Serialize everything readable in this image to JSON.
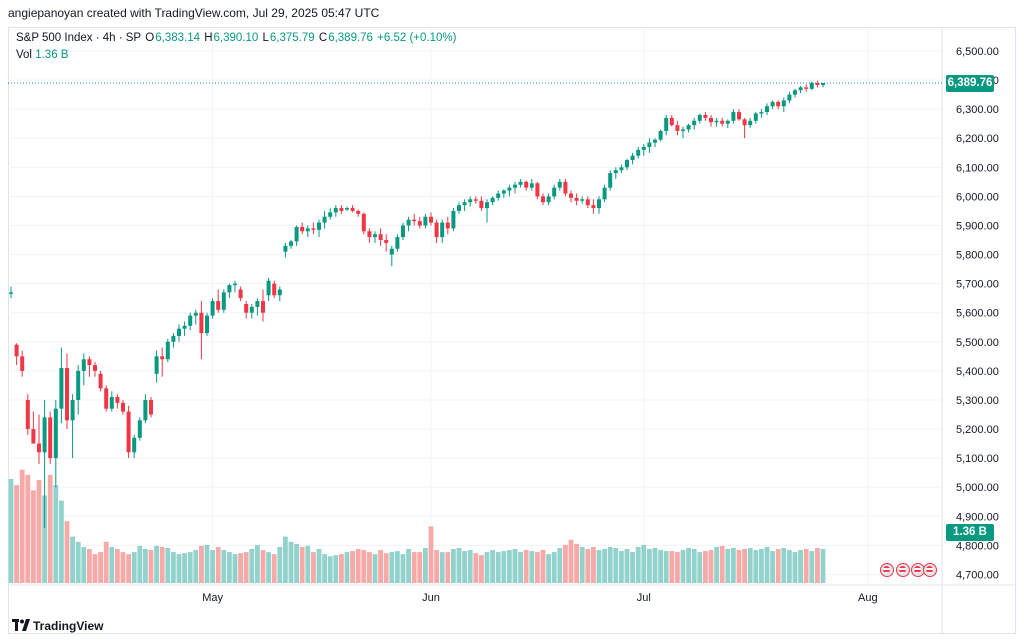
{
  "header": {
    "credit": "angiepanoyan created with TradingView.com, Jul 29, 2025 05:47 UTC"
  },
  "legend": {
    "symbol": "S&P 500 Index · 4h · SP",
    "o_label": "O",
    "o_value": "6,383.14",
    "h_label": "H",
    "h_value": "6,390.10",
    "l_label": "L",
    "l_value": "6,375.79",
    "c_label": "C",
    "c_value": "6,389.76",
    "change": "+6.52 (+0.10%)",
    "vol_label": "Vol",
    "vol_value": "1.36 B"
  },
  "price_tag": "6,389.76",
  "volume_tag": "1.36 B",
  "footer": {
    "brand": "TradingView"
  },
  "colors": {
    "up": "#089981",
    "down": "#f23645",
    "up_vol": "#92d2cc",
    "down_vol": "#f7a9a7",
    "grid": "#f0f3fa"
  },
  "chart_data": {
    "type": "candlestick",
    "title": "S&P 500 Index · 4h · SP",
    "ylim": [
      4650,
      6560
    ],
    "y_ticks": [
      "6,500.00",
      "6,400.00",
      "6,300.00",
      "6,200.00",
      "6,100.00",
      "6,000.00",
      "5,900.00",
      "5,800.00",
      "5,700.00",
      "5,600.00",
      "5,500.00",
      "5,400.00",
      "5,300.00",
      "5,200.00",
      "5,100.00",
      "5,000.00",
      "4,900.00",
      "4,800.00",
      "4,700.00"
    ],
    "x_ticks": [
      {
        "label": "May",
        "index": 36
      },
      {
        "label": "Jun",
        "index": 75
      },
      {
        "label": "Jul",
        "index": 113
      },
      {
        "label": "Aug",
        "index": 153
      }
    ],
    "candles": [
      [
        5665,
        5690,
        5650,
        5670
      ],
      [
        5490,
        5495,
        5420,
        5450
      ],
      [
        5450,
        5470,
        5380,
        5400
      ],
      [
        5300,
        5320,
        5180,
        5200
      ],
      [
        5200,
        5260,
        5150,
        5150
      ],
      [
        5150,
        5250,
        5080,
        5120
      ],
      [
        5120,
        5300,
        4860,
        5240
      ],
      [
        5240,
        5260,
        5080,
        5100
      ],
      [
        5100,
        5300,
        5000,
        5270
      ],
      [
        5270,
        5480,
        5220,
        5410
      ],
      [
        5410,
        5460,
        5200,
        5230
      ],
      [
        5230,
        5320,
        5100,
        5300
      ],
      [
        5300,
        5420,
        5250,
        5400
      ],
      [
        5400,
        5460,
        5350,
        5440
      ],
      [
        5440,
        5450,
        5380,
        5420
      ],
      [
        5420,
        5430,
        5380,
        5400
      ],
      [
        5390,
        5400,
        5330,
        5340
      ],
      [
        5340,
        5350,
        5260,
        5270
      ],
      [
        5270,
        5330,
        5260,
        5310
      ],
      [
        5310,
        5320,
        5270,
        5290
      ],
      [
        5290,
        5300,
        5250,
        5260
      ],
      [
        5260,
        5280,
        5100,
        5120
      ],
      [
        5120,
        5180,
        5100,
        5170
      ],
      [
        5170,
        5240,
        5160,
        5230
      ],
      [
        5230,
        5320,
        5220,
        5300
      ],
      [
        5300,
        5310,
        5240,
        5250
      ],
      [
        5390,
        5470,
        5360,
        5450
      ],
      [
        5450,
        5480,
        5380,
        5440
      ],
      [
        5440,
        5510,
        5430,
        5500
      ],
      [
        5500,
        5530,
        5480,
        5520
      ],
      [
        5520,
        5560,
        5500,
        5545
      ],
      [
        5545,
        5570,
        5520,
        5555
      ],
      [
        5555,
        5600,
        5540,
        5590
      ],
      [
        5590,
        5610,
        5560,
        5600
      ],
      [
        5600,
        5640,
        5440,
        5530
      ],
      [
        5530,
        5600,
        5520,
        5590
      ],
      [
        5590,
        5650,
        5580,
        5640
      ],
      [
        5640,
        5680,
        5600,
        5610
      ],
      [
        5610,
        5680,
        5600,
        5670
      ],
      [
        5670,
        5700,
        5650,
        5695
      ],
      [
        5695,
        5710,
        5670,
        5700
      ],
      [
        5680,
        5690,
        5640,
        5650
      ],
      [
        5630,
        5640,
        5580,
        5600
      ],
      [
        5600,
        5630,
        5580,
        5620
      ],
      [
        5620,
        5650,
        5590,
        5640
      ],
      [
        5640,
        5680,
        5570,
        5600
      ],
      [
        5660,
        5720,
        5640,
        5710
      ],
      [
        5700,
        5710,
        5650,
        5660
      ],
      [
        5660,
        5690,
        5640,
        5680
      ],
      [
        5810,
        5840,
        5790,
        5830
      ],
      [
        5830,
        5850,
        5820,
        5845
      ],
      [
        5845,
        5900,
        5830,
        5895
      ],
      [
        5895,
        5910,
        5870,
        5880
      ],
      [
        5880,
        5900,
        5860,
        5890
      ],
      [
        5890,
        5910,
        5870,
        5885
      ],
      [
        5885,
        5920,
        5860,
        5910
      ],
      [
        5910,
        5950,
        5890,
        5930
      ],
      [
        5930,
        5960,
        5920,
        5945
      ],
      [
        5945,
        5970,
        5930,
        5960
      ],
      [
        5960,
        5970,
        5940,
        5950
      ],
      [
        5955,
        5965,
        5950,
        5960
      ],
      [
        5960,
        5970,
        5945,
        5950
      ],
      [
        5950,
        5955,
        5930,
        5940
      ],
      [
        5940,
        5945,
        5870,
        5880
      ],
      [
        5880,
        5890,
        5840,
        5860
      ],
      [
        5860,
        5880,
        5840,
        5870
      ],
      [
        5870,
        5890,
        5830,
        5850
      ],
      [
        5850,
        5870,
        5810,
        5840
      ],
      [
        5800,
        5830,
        5760,
        5820
      ],
      [
        5820,
        5870,
        5810,
        5860
      ],
      [
        5860,
        5910,
        5850,
        5900
      ],
      [
        5900,
        5930,
        5880,
        5920
      ],
      [
        5920,
        5940,
        5900,
        5915
      ],
      [
        5915,
        5930,
        5890,
        5900
      ],
      [
        5900,
        5940,
        5890,
        5930
      ],
      [
        5930,
        5945,
        5900,
        5910
      ],
      [
        5910,
        5920,
        5840,
        5860
      ],
      [
        5860,
        5920,
        5840,
        5910
      ],
      [
        5910,
        5930,
        5870,
        5890
      ],
      [
        5890,
        5960,
        5880,
        5950
      ],
      [
        5950,
        5980,
        5940,
        5970
      ],
      [
        5970,
        5990,
        5950,
        5980
      ],
      [
        5980,
        6000,
        5965,
        5990
      ],
      [
        5990,
        6000,
        5975,
        5985
      ],
      [
        5985,
        6000,
        5950,
        5960
      ],
      [
        5960,
        5990,
        5910,
        5980
      ],
      [
        5980,
        6000,
        5970,
        5995
      ],
      [
        5995,
        6020,
        5985,
        6010
      ],
      [
        6010,
        6025,
        5995,
        6020
      ],
      [
        6020,
        6040,
        6000,
        6030
      ],
      [
        6030,
        6050,
        6010,
        6040
      ],
      [
        6040,
        6060,
        6030,
        6050
      ],
      [
        6050,
        6055,
        6020,
        6030
      ],
      [
        6030,
        6060,
        6020,
        6045
      ],
      [
        6045,
        6050,
        5990,
        6000
      ],
      [
        6000,
        6010,
        5970,
        5980
      ],
      [
        5980,
        6010,
        5970,
        6000
      ],
      [
        6000,
        6040,
        5990,
        6030
      ],
      [
        6030,
        6060,
        6020,
        6050
      ],
      [
        6050,
        6060,
        6000,
        6010
      ],
      [
        6010,
        6020,
        5980,
        5995
      ],
      [
        5995,
        6010,
        5970,
        5985
      ],
      [
        5985,
        6000,
        5975,
        5990
      ],
      [
        5990,
        6000,
        5960,
        5970
      ],
      [
        5970,
        5990,
        5940,
        5960
      ],
      [
        5960,
        6000,
        5940,
        5990
      ],
      [
        5990,
        6040,
        5980,
        6030
      ],
      [
        6030,
        6090,
        6020,
        6080
      ],
      [
        6080,
        6100,
        6060,
        6090
      ],
      [
        6090,
        6110,
        6080,
        6100
      ],
      [
        6100,
        6130,
        6090,
        6125
      ],
      [
        6125,
        6150,
        6110,
        6140
      ],
      [
        6140,
        6170,
        6130,
        6160
      ],
      [
        6160,
        6180,
        6140,
        6170
      ],
      [
        6170,
        6200,
        6150,
        6185
      ],
      [
        6185,
        6200,
        6170,
        6195
      ],
      [
        6195,
        6230,
        6190,
        6225
      ],
      [
        6225,
        6280,
        6210,
        6270
      ],
      [
        6270,
        6280,
        6240,
        6245
      ],
      [
        6245,
        6260,
        6210,
        6225
      ],
      [
        6225,
        6240,
        6200,
        6230
      ],
      [
        6230,
        6250,
        6220,
        6245
      ],
      [
        6245,
        6270,
        6230,
        6260
      ],
      [
        6260,
        6285,
        6250,
        6280
      ],
      [
        6280,
        6290,
        6260,
        6270
      ],
      [
        6270,
        6280,
        6240,
        6255
      ],
      [
        6255,
        6270,
        6240,
        6260
      ],
      [
        6260,
        6270,
        6240,
        6250
      ],
      [
        6250,
        6265,
        6235,
        6260
      ],
      [
        6260,
        6300,
        6250,
        6290
      ],
      [
        6290,
        6300,
        6260,
        6265
      ],
      [
        6265,
        6270,
        6200,
        6245
      ],
      [
        6245,
        6270,
        6235,
        6260
      ],
      [
        6260,
        6290,
        6250,
        6285
      ],
      [
        6285,
        6300,
        6270,
        6290
      ],
      [
        6290,
        6320,
        6280,
        6310
      ],
      [
        6310,
        6330,
        6300,
        6325
      ],
      [
        6325,
        6330,
        6300,
        6310
      ],
      [
        6310,
        6340,
        6290,
        6330
      ],
      [
        6330,
        6360,
        6320,
        6350
      ],
      [
        6350,
        6370,
        6340,
        6365
      ],
      [
        6365,
        6380,
        6355,
        6375
      ],
      [
        6375,
        6385,
        6360,
        6370
      ],
      [
        6370,
        6395,
        6365,
        6390
      ],
      [
        6390,
        6398,
        6375,
        6383
      ],
      [
        6383,
        6390,
        6375,
        6389.76
      ]
    ],
    "volumes": [
      1.01,
      0.95,
      1.1,
      1.05,
      0.9,
      1.0,
      0.85,
      1.05,
      0.95,
      0.8,
      0.6,
      0.45,
      0.4,
      0.35,
      0.33,
      0.28,
      0.3,
      0.4,
      0.35,
      0.33,
      0.3,
      0.28,
      0.3,
      0.36,
      0.33,
      0.32,
      0.36,
      0.35,
      0.34,
      0.3,
      0.28,
      0.29,
      0.3,
      0.32,
      0.36,
      0.37,
      0.32,
      0.35,
      0.32,
      0.3,
      0.28,
      0.29,
      0.3,
      0.33,
      0.37,
      0.32,
      0.3,
      0.28,
      0.35,
      0.45,
      0.4,
      0.38,
      0.35,
      0.36,
      0.3,
      0.33,
      0.28,
      0.26,
      0.27,
      0.28,
      0.3,
      0.31,
      0.33,
      0.32,
      0.3,
      0.28,
      0.32,
      0.29,
      0.3,
      0.31,
      0.28,
      0.33,
      0.3,
      0.3,
      0.34,
      0.55,
      0.32,
      0.3,
      0.3,
      0.33,
      0.34,
      0.31,
      0.32,
      0.29,
      0.27,
      0.3,
      0.32,
      0.3,
      0.31,
      0.32,
      0.33,
      0.3,
      0.32,
      0.31,
      0.3,
      0.32,
      0.28,
      0.3,
      0.34,
      0.37,
      0.42,
      0.38,
      0.35,
      0.33,
      0.35,
      0.32,
      0.33,
      0.35,
      0.34,
      0.31,
      0.33,
      0.3,
      0.35,
      0.37,
      0.33,
      0.34,
      0.32,
      0.31,
      0.31,
      0.3,
      0.32,
      0.34,
      0.33,
      0.3,
      0.31,
      0.32,
      0.35,
      0.36,
      0.33,
      0.34,
      0.32,
      0.33,
      0.34,
      0.32,
      0.33,
      0.35,
      0.31,
      0.33,
      0.34,
      0.32,
      0.3,
      0.32,
      0.33,
      0.31,
      0.34,
      0.33,
      0.32,
      0.3,
      0.35,
      0.36,
      0.34,
      0.31,
      0.3
    ]
  }
}
